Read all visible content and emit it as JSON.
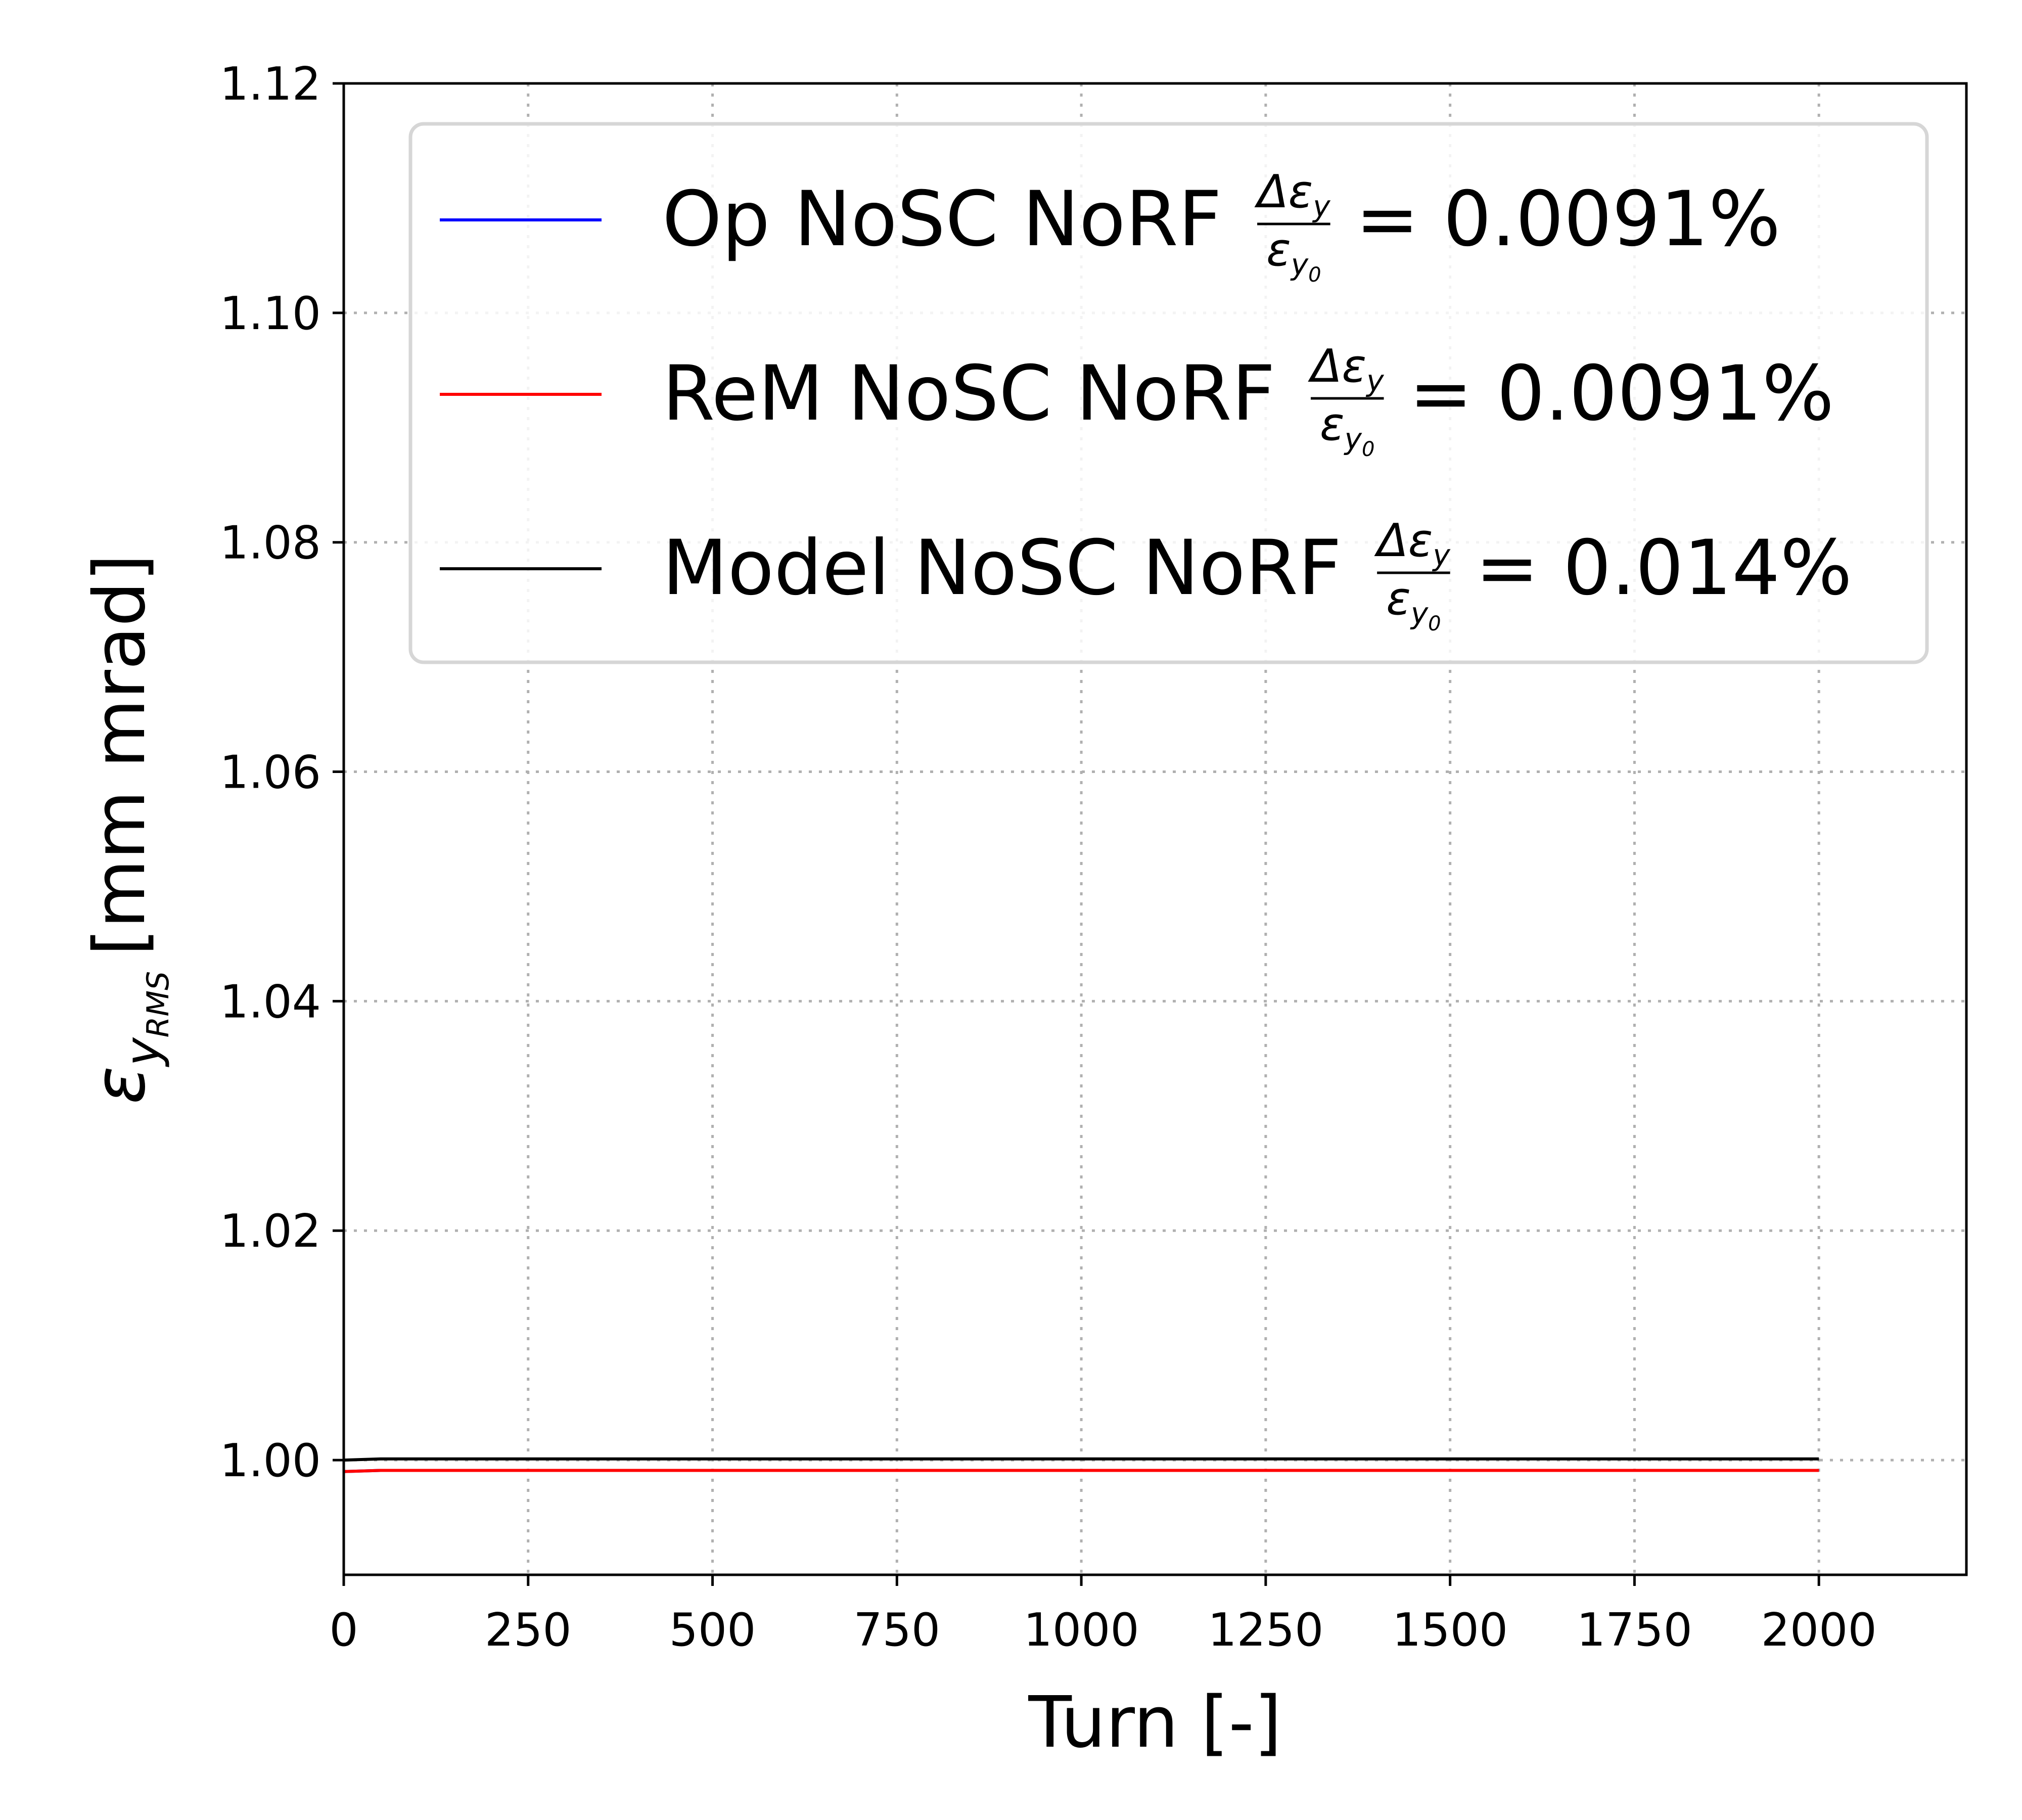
{
  "chart_data": {
    "type": "line",
    "xlabel": "Turn [-]",
    "ylabel": {
      "symbol": "ε",
      "sub": "y",
      "subsub": "RMS",
      "unit": "[mm mrad]"
    },
    "xlim": [
      0,
      2200
    ],
    "ylim": [
      0.99,
      1.12
    ],
    "x_ticks": [
      "0",
      "250",
      "500",
      "750",
      "1000",
      "1250",
      "1500",
      "1750",
      "2000"
    ],
    "y_ticks": [
      "1.00",
      "1.02",
      "1.04",
      "1.06",
      "1.08",
      "1.10",
      "1.12"
    ],
    "grid": true,
    "legend_position": "top-right",
    "series": [
      {
        "name": "Op NoSC NoRF",
        "color": "#0000ff",
        "fraction": {
          "num_symbol": "Δε",
          "num_sub": "y",
          "den_symbol": "ε",
          "den_sub": "y",
          "den_subsub": "0"
        },
        "value_text": "= 0.0091%",
        "x": [
          0,
          50,
          100,
          500,
          1000,
          1500,
          2000
        ],
        "y": [
          0.999,
          0.9991,
          0.9991,
          0.9991,
          0.9991,
          0.9991,
          0.9991
        ]
      },
      {
        "name": "ReM NoSC NoRF",
        "color": "#ff0000",
        "fraction": {
          "num_symbol": "Δε",
          "num_sub": "y",
          "den_symbol": "ε",
          "den_sub": "y",
          "den_subsub": "0"
        },
        "value_text": "= 0.0091%",
        "x": [
          0,
          50,
          100,
          500,
          1000,
          1500,
          2000
        ],
        "y": [
          0.999,
          0.9991,
          0.9991,
          0.9991,
          0.9991,
          0.9991,
          0.9991
        ]
      },
      {
        "name": "Model NoSC NoRF",
        "color": "#000000",
        "fraction": {
          "num_symbol": "Δε",
          "num_sub": "y",
          "den_symbol": "ε",
          "den_sub": "y",
          "den_subsub": "0"
        },
        "value_text": "= 0.014%",
        "x": [
          0,
          50,
          100,
          500,
          1000,
          1500,
          2000
        ],
        "y": [
          1.0,
          1.0001,
          1.0001,
          1.0001,
          1.0001,
          1.0001,
          1.0001
        ]
      }
    ]
  }
}
